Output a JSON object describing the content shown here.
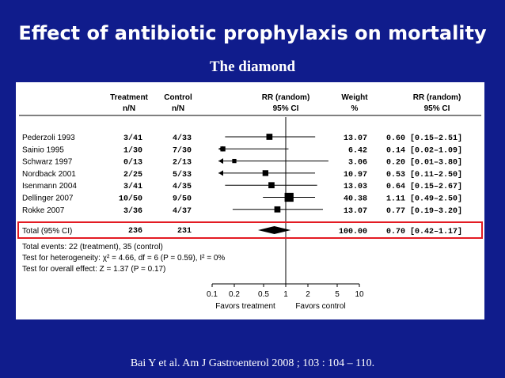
{
  "slide": {
    "title": "Effect of antibiotic prophylaxis on mortality",
    "subtitle": "The diamond",
    "citation": "Bai Y et al. Am J Gastroenterol 2008 ; 103 : 104 – 110."
  },
  "chart_data": {
    "type": "forest",
    "headers": {
      "treatment": [
        "Treatment",
        "n/N"
      ],
      "control": [
        "Control",
        "n/N"
      ],
      "rr_plot": [
        "RR (random)",
        "95% CI"
      ],
      "weight": [
        "Weight",
        "%"
      ],
      "rr_value": [
        "RR (random)",
        "95% CI"
      ]
    },
    "studies": [
      {
        "name": "Pederzoli 1993",
        "treatment": "3/41",
        "control": "4/33",
        "weight": "13.07",
        "rr_text": "0.60 [0.15–2.51]",
        "rr": 0.6,
        "lo": 0.15,
        "hi": 2.51
      },
      {
        "name": "Sainio 1995",
        "treatment": "1/30",
        "control": "7/30",
        "weight": "6.42",
        "rr_text": "0.14 [0.02–1.09]",
        "rr": 0.14,
        "lo": 0.02,
        "hi": 1.09
      },
      {
        "name": "Schwarz 1997",
        "treatment": "0/13",
        "control": "2/13",
        "weight": "3.06",
        "rr_text": "0.20 [0.01–3.80]",
        "rr": 0.2,
        "lo": 0.01,
        "hi": 3.8
      },
      {
        "name": "Nordback 2001",
        "treatment": "2/25",
        "control": "5/33",
        "weight": "10.97",
        "rr_text": "0.53 [0.11–2.50]",
        "rr": 0.53,
        "lo": 0.11,
        "hi": 2.5
      },
      {
        "name": "Isenmann 2004",
        "treatment": "3/41",
        "control": "4/35",
        "weight": "13.03",
        "rr_text": "0.64 [0.15–2.67]",
        "rr": 0.64,
        "lo": 0.15,
        "hi": 2.67
      },
      {
        "name": "Dellinger 2007",
        "treatment": "10/50",
        "control": "9/50",
        "weight": "40.38",
        "rr_text": "1.11 [0.49–2.50]",
        "rr": 1.11,
        "lo": 0.49,
        "hi": 2.5
      },
      {
        "name": "Rokke 2007",
        "treatment": "3/36",
        "control": "4/37",
        "weight": "13.07",
        "rr_text": "0.77 [0.19–3.20]",
        "rr": 0.77,
        "lo": 0.19,
        "hi": 3.2
      }
    ],
    "total": {
      "name": "Total (95% CI)",
      "treatment": "236",
      "control": "231",
      "weight": "100.00",
      "rr_text": "0.70 [0.42–1.17]",
      "rr": 0.7,
      "lo": 0.42,
      "hi": 1.17
    },
    "footnotes": [
      "Total events: 22 (treatment), 35 (control)",
      "Test for heterogeneity: χ² = 4.66, df = 6 (P = 0.59), I² = 0%",
      "Test for overall effect: Z = 1.37 (P = 0.17)"
    ],
    "x_axis": {
      "scale": "log",
      "ticks": [
        0.1,
        0.2,
        0.5,
        1,
        2,
        5,
        10
      ],
      "tick_labels": [
        "0.1",
        "0.2",
        "0.5",
        "1",
        "2",
        "5",
        "10"
      ],
      "range": [
        0.1,
        10
      ],
      "left_label": "Favors treatment",
      "right_label": "Favors control"
    },
    "highlight_color": "#e31b23"
  }
}
